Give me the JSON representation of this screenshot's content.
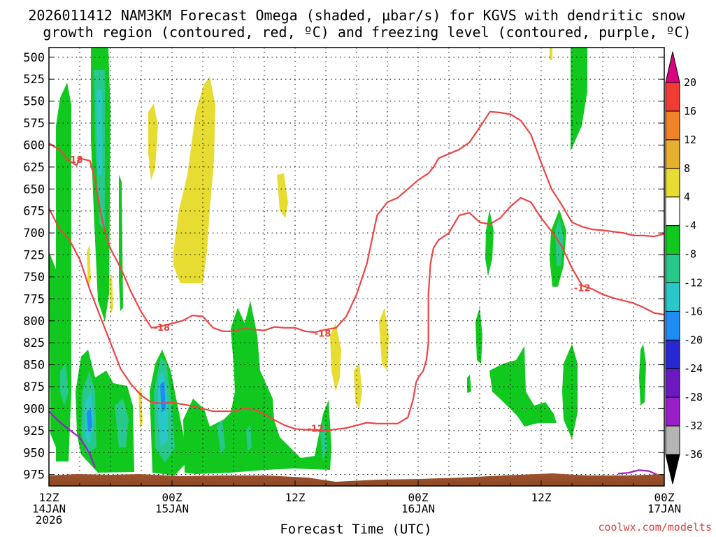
{
  "title": {
    "line1": "2026011412 NAM3KM Forecast Omega (shaded, μbar/s) for KGVS with dendritic snow",
    "line2": "growth region (contoured, red, ºC) and freezing level (contoured, purple, ºC)"
  },
  "credit": "coolwx.com/modelts",
  "chart_data": {
    "type": "heatmap",
    "title": "2026011412 NAM3KM Forecast Omega (shaded, μbar/s) for KGVS with dendritic snow growth region (contoured, red, ºC) and freezing level (contoured, purple, ºC)",
    "xlabel": "Forecast Time (UTC)",
    "ylabel": "",
    "x_unit": "hours from 2026-01-14 12Z",
    "xlim": [
      0,
      60
    ],
    "x_ticks": [
      {
        "x": 0,
        "line1": "12Z",
        "line2": "14JAN",
        "line3": "2026"
      },
      {
        "x": 12,
        "line1": "00Z",
        "line2": "15JAN",
        "line3": ""
      },
      {
        "x": 24,
        "line1": "12Z",
        "line2": "",
        "line3": ""
      },
      {
        "x": 36,
        "line1": "00Z",
        "line2": "16JAN",
        "line3": ""
      },
      {
        "x": 48,
        "line1": "12Z",
        "line2": "",
        "line3": ""
      },
      {
        "x": 60,
        "line1": "00Z",
        "line2": "17JAN",
        "line3": ""
      }
    ],
    "y_unit": "hPa",
    "ylim": [
      988,
      489
    ],
    "y_ticks": [
      500,
      525,
      550,
      575,
      600,
      625,
      650,
      675,
      700,
      725,
      750,
      775,
      800,
      825,
      850,
      875,
      900,
      925,
      950,
      975
    ],
    "grid": true,
    "colorbar": {
      "levels": [
        -36,
        -32,
        -28,
        -24,
        -20,
        -16,
        -12,
        -8,
        -4,
        4,
        8,
        12,
        16,
        20
      ],
      "colors": [
        "#000000",
        "#b4b4b4",
        "#9a1ec8",
        "#6a18c0",
        "#2828d2",
        "#1e8cf0",
        "#28c8c8",
        "#28c88c",
        "#10c81e",
        "#ffffff",
        "#e6dc32",
        "#e6af2d",
        "#f08228",
        "#f03c32",
        "#dc0082"
      ],
      "labels": [
        "-36",
        "-32",
        "-28",
        "-24",
        "-20",
        "-16",
        "-12",
        "-8",
        "-4",
        "4",
        "8",
        "12",
        "16",
        "20"
      ]
    },
    "series": [
      {
        "name": "-12",
        "kind": "red",
        "points": [
          [
            0,
            672
          ],
          [
            1,
            695
          ],
          [
            2,
            708
          ],
          [
            3,
            730
          ],
          [
            4,
            765
          ],
          [
            5,
            795
          ],
          [
            6,
            825
          ],
          [
            7,
            855
          ],
          [
            8,
            872
          ],
          [
            9,
            885
          ],
          [
            10,
            893
          ],
          [
            11,
            894
          ],
          [
            12,
            893
          ],
          [
            13,
            895
          ],
          [
            14,
            897
          ],
          [
            15,
            900
          ],
          [
            16,
            903
          ],
          [
            18,
            903
          ],
          [
            19,
            900
          ],
          [
            20,
            901
          ],
          [
            21,
            906
          ],
          [
            22,
            913
          ],
          [
            23,
            919
          ],
          [
            24,
            923
          ],
          [
            25,
            924
          ],
          [
            26,
            924
          ],
          [
            27,
            925
          ],
          [
            29,
            922
          ],
          [
            30,
            919
          ],
          [
            31,
            916
          ],
          [
            32,
            917
          ],
          [
            34,
            917
          ],
          [
            35,
            910
          ],
          [
            35.5,
            890
          ],
          [
            35.8,
            870
          ],
          [
            36,
            865
          ],
          [
            36.5,
            857
          ],
          [
            36.8,
            845
          ],
          [
            37,
            825
          ],
          [
            37,
            770
          ],
          [
            37.2,
            735
          ],
          [
            37.5,
            717
          ],
          [
            38,
            708
          ],
          [
            39,
            700
          ],
          [
            39.5,
            690
          ],
          [
            40,
            680
          ],
          [
            41,
            677
          ],
          [
            42,
            688
          ],
          [
            43,
            690
          ],
          [
            44,
            683
          ],
          [
            45,
            670
          ],
          [
            46,
            660
          ],
          [
            47,
            665
          ],
          [
            48,
            683
          ],
          [
            49,
            698
          ],
          [
            50,
            715
          ],
          [
            51,
            740
          ],
          [
            52,
            760
          ],
          [
            53,
            764
          ],
          [
            54,
            770
          ],
          [
            55,
            774
          ],
          [
            57,
            780
          ],
          [
            58,
            785
          ],
          [
            59,
            791
          ],
          [
            60,
            793
          ]
        ],
        "labels": [
          {
            "x": 26,
            "p": 923,
            "text": "-12"
          },
          {
            "x": 52,
            "p": 763,
            "text": "-12"
          }
        ]
      },
      {
        "name": "-18",
        "kind": "red",
        "points": [
          [
            0,
            598
          ],
          [
            1,
            605
          ],
          [
            2,
            618
          ],
          [
            2.7,
            623
          ],
          [
            3,
            615
          ],
          [
            4,
            618
          ],
          [
            4.5,
            640
          ],
          [
            5,
            675
          ],
          [
            5.5,
            700
          ],
          [
            6,
            718
          ],
          [
            7,
            740
          ],
          [
            8,
            767
          ],
          [
            9,
            790
          ],
          [
            10,
            808
          ],
          [
            11,
            806
          ],
          [
            12,
            803
          ],
          [
            13,
            800
          ],
          [
            14,
            794
          ],
          [
            15,
            795
          ],
          [
            16,
            808
          ],
          [
            17,
            812
          ],
          [
            18,
            812
          ],
          [
            19,
            809
          ],
          [
            20,
            810
          ],
          [
            21,
            811
          ],
          [
            22,
            807
          ],
          [
            23,
            808
          ],
          [
            24,
            808
          ],
          [
            25,
            812
          ],
          [
            26,
            813
          ],
          [
            27,
            810
          ],
          [
            28,
            808
          ],
          [
            29,
            795
          ],
          [
            30,
            770
          ],
          [
            31,
            735
          ],
          [
            32,
            680
          ],
          [
            33,
            665
          ],
          [
            34,
            660
          ],
          [
            35,
            650
          ],
          [
            36,
            640
          ],
          [
            37,
            632
          ],
          [
            37.5,
            625
          ],
          [
            38,
            615
          ],
          [
            39,
            610
          ],
          [
            40,
            605
          ],
          [
            41,
            597
          ],
          [
            42,
            580
          ],
          [
            43,
            562
          ],
          [
            44,
            563
          ],
          [
            45,
            565
          ],
          [
            46,
            572
          ],
          [
            47,
            588
          ],
          [
            48,
            620
          ],
          [
            49,
            650
          ],
          [
            50,
            668
          ],
          [
            51,
            688
          ],
          [
            52,
            693
          ],
          [
            53,
            696
          ],
          [
            54,
            697
          ],
          [
            56,
            700
          ],
          [
            57,
            703
          ],
          [
            58,
            703
          ],
          [
            59,
            704
          ],
          [
            60,
            701
          ]
        ],
        "labels": [
          {
            "x": 2.5,
            "p": 617,
            "text": "-18"
          },
          {
            "x": 11,
            "p": 808,
            "text": "-18"
          },
          {
            "x": 26.7,
            "p": 815,
            "text": "-18"
          }
        ]
      },
      {
        "name": "0",
        "kind": "purple",
        "points": [
          [
            0,
            903
          ],
          [
            1,
            915
          ],
          [
            2,
            924
          ],
          [
            3,
            933
          ],
          [
            3.5,
            942
          ],
          [
            4,
            952
          ],
          [
            4.5,
            967
          ]
        ]
      },
      {
        "name": "0b",
        "kind": "purple",
        "points": [
          [
            55.5,
            974
          ],
          [
            56.5,
            973
          ],
          [
            57.5,
            970
          ],
          [
            58.5,
            971
          ],
          [
            59.3,
            975
          ]
        ]
      }
    ]
  }
}
